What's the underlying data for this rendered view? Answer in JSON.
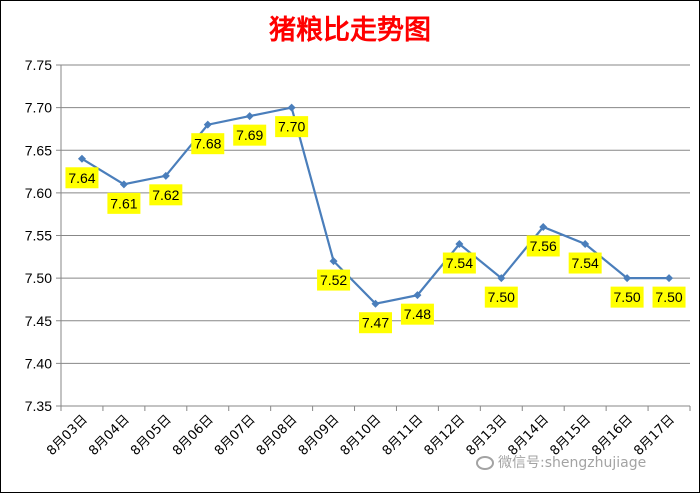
{
  "chart_data": {
    "type": "line",
    "title": "猪粮比走势图",
    "xlabel": "",
    "ylabel": "",
    "categories": [
      "8月03日",
      "8月04日",
      "8月05日",
      "8月06日",
      "8月07日",
      "8月08日",
      "8月09日",
      "8月10日",
      "8月11日",
      "8月12日",
      "8月13日",
      "8月14日",
      "8月15日",
      "8月16日",
      "8月17日"
    ],
    "series": [
      {
        "values": [
          7.64,
          7.61,
          7.62,
          7.68,
          7.69,
          7.7,
          7.52,
          7.47,
          7.48,
          7.54,
          7.5,
          7.56,
          7.54,
          7.5,
          7.5
        ]
      }
    ],
    "data_labels": [
      "7.64",
      "7.61",
      "7.62",
      "7.68",
      "7.69",
      "7.70",
      "7.52",
      "7.47",
      "7.48",
      "7.54",
      "7.50",
      "7.56",
      "7.54",
      "7.50",
      "7.50"
    ],
    "ylim": [
      7.35,
      7.75
    ],
    "y_ticks": [
      "7.35",
      "7.40",
      "7.45",
      "7.50",
      "7.55",
      "7.60",
      "7.65",
      "7.70",
      "7.75"
    ],
    "grid": true,
    "legend": "none",
    "colors": {
      "line": "#4a7ebb",
      "label_bg": "#ffff00",
      "title": "#ff0000",
      "grid": "#878787"
    }
  },
  "watermark": {
    "text": "微信号:shengzhujiage",
    "icon": "wechat-icon"
  }
}
